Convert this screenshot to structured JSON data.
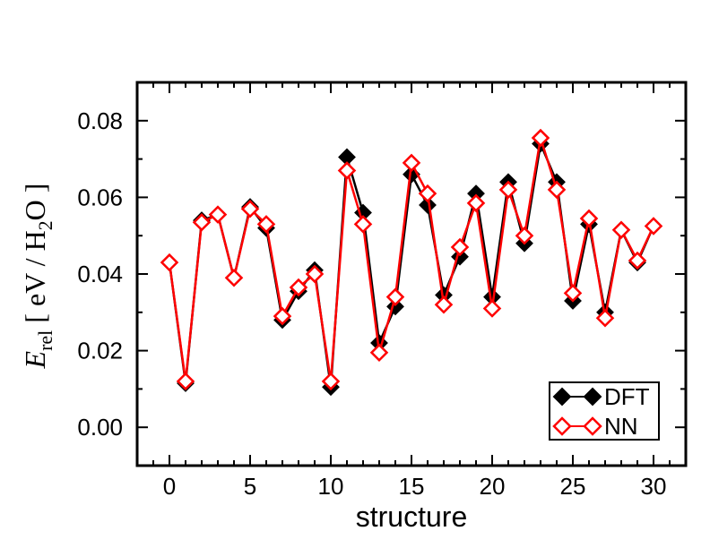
{
  "chart_data": {
    "type": "line",
    "xlabel": "structure",
    "ylabel": {
      "symbol": "E",
      "subscript": "rel",
      "open_bracket": "[ eV / H",
      "h2_subscript": "2",
      "close_text": "O ]"
    },
    "xlim": [
      -2,
      32
    ],
    "ylim": [
      -0.01,
      0.09
    ],
    "xticks": [
      0,
      5,
      10,
      15,
      20,
      25,
      30
    ],
    "xtick_labels": [
      "0",
      "5",
      "10",
      "15",
      "20",
      "25",
      "30"
    ],
    "yticks": [
      0.0,
      0.02,
      0.04,
      0.06,
      0.08
    ],
    "ytick_labels": [
      "0.00",
      "0.02",
      "0.04",
      "0.06",
      "0.08"
    ],
    "grid": false,
    "legend_position": "bottom-right",
    "x": [
      0,
      1,
      2,
      3,
      4,
      5,
      6,
      7,
      8,
      9,
      10,
      11,
      12,
      13,
      14,
      15,
      16,
      17,
      18,
      19,
      20,
      21,
      22,
      23,
      24,
      25,
      26,
      27,
      28,
      29,
      30
    ],
    "series": [
      {
        "name": "DFT",
        "color": "#000000",
        "marker": "filled-diamond",
        "values": [
          0.043,
          0.0115,
          0.054,
          0.0555,
          0.039,
          0.0575,
          0.052,
          0.028,
          0.0355,
          0.041,
          0.0105,
          0.0705,
          0.056,
          0.022,
          0.0315,
          0.066,
          0.058,
          0.0345,
          0.0445,
          0.061,
          0.034,
          0.064,
          0.048,
          0.074,
          0.064,
          0.033,
          0.053,
          0.03,
          0.0515,
          0.043,
          0.0525
        ]
      },
      {
        "name": "NN",
        "color": "#ff0000",
        "marker": "open-diamond",
        "values": [
          0.043,
          0.012,
          0.0535,
          0.0555,
          0.039,
          0.057,
          0.053,
          0.029,
          0.0365,
          0.04,
          0.012,
          0.067,
          0.053,
          0.0195,
          0.034,
          0.069,
          0.061,
          0.032,
          0.047,
          0.0585,
          0.031,
          0.062,
          0.05,
          0.0755,
          0.062,
          0.035,
          0.0545,
          0.0285,
          0.0515,
          0.0435,
          0.0525
        ]
      }
    ]
  }
}
